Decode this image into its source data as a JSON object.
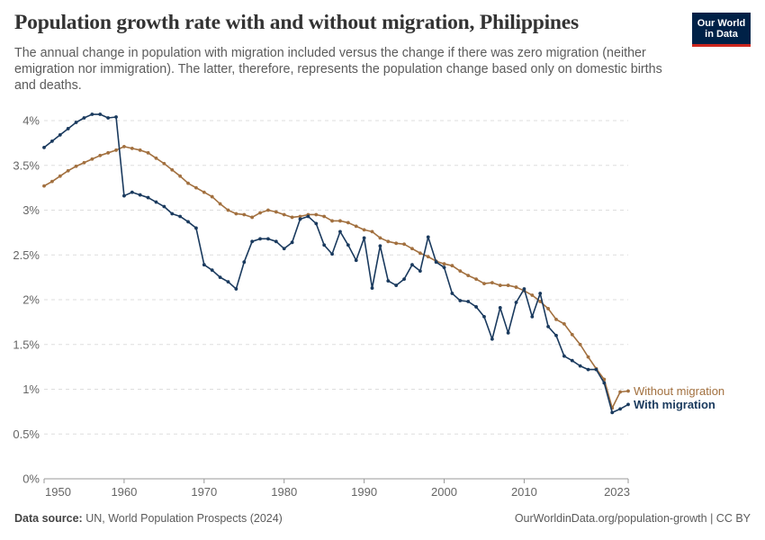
{
  "header": {
    "title": "Population growth rate with and without migration, Philippines",
    "subtitle": "The annual change in population with migration included versus the change if there was zero migration (neither emigration nor immigration). The latter, therefore, represents the population change based only on domestic births and deaths."
  },
  "logo": {
    "line1": "Our World",
    "line2": "in Data",
    "bg_color": "#002147",
    "accent_color": "#ce261e"
  },
  "footer": {
    "source_label": "Data source:",
    "source_text": "UN, World Population Prospects (2024)",
    "url_license": "OurWorldinData.org/population-growth | CC BY"
  },
  "chart_data": {
    "type": "line",
    "xlim": [
      1950,
      2023
    ],
    "ylim": [
      0,
      4
    ],
    "x_ticks": [
      "1950",
      "1960",
      "1970",
      "1980",
      "1990",
      "2000",
      "2010",
      "2023"
    ],
    "y_ticks": [
      "0%",
      "0.5%",
      "1%",
      "1.5%",
      "2%",
      "2.5%",
      "3%",
      "3.5%",
      "4%"
    ],
    "grid": "horizontal dashed",
    "x": [
      1950,
      1951,
      1952,
      1953,
      1954,
      1955,
      1956,
      1957,
      1958,
      1959,
      1960,
      1961,
      1962,
      1963,
      1964,
      1965,
      1966,
      1967,
      1968,
      1969,
      1970,
      1971,
      1972,
      1973,
      1974,
      1975,
      1976,
      1977,
      1978,
      1979,
      1980,
      1981,
      1982,
      1983,
      1984,
      1985,
      1986,
      1987,
      1988,
      1989,
      1990,
      1991,
      1992,
      1993,
      1994,
      1995,
      1996,
      1997,
      1998,
      1999,
      2000,
      2001,
      2002,
      2003,
      2004,
      2005,
      2006,
      2007,
      2008,
      2009,
      2010,
      2011,
      2012,
      2013,
      2014,
      2015,
      2016,
      2017,
      2018,
      2019,
      2020,
      2021,
      2022,
      2023
    ],
    "series": [
      {
        "name": "Without migration",
        "color": "#a2703f",
        "values": [
          3.27,
          3.32,
          3.38,
          3.44,
          3.49,
          3.53,
          3.57,
          3.61,
          3.64,
          3.67,
          3.71,
          3.69,
          3.67,
          3.64,
          3.58,
          3.52,
          3.45,
          3.38,
          3.3,
          3.25,
          3.2,
          3.15,
          3.07,
          3.0,
          2.96,
          2.95,
          2.92,
          2.97,
          3.0,
          2.98,
          2.95,
          2.92,
          2.93,
          2.95,
          2.95,
          2.93,
          2.88,
          2.88,
          2.86,
          2.82,
          2.78,
          2.76,
          2.69,
          2.65,
          2.63,
          2.62,
          2.57,
          2.52,
          2.48,
          2.43,
          2.4,
          2.38,
          2.32,
          2.27,
          2.23,
          2.18,
          2.19,
          2.16,
          2.16,
          2.14,
          2.1,
          2.05,
          1.98,
          1.9,
          1.78,
          1.73,
          1.61,
          1.5,
          1.36,
          1.23,
          1.11,
          0.79,
          0.97,
          0.98
        ]
      },
      {
        "name": "With migration",
        "color": "#1a3a5e",
        "values": [
          3.7,
          3.77,
          3.84,
          3.91,
          3.98,
          4.03,
          4.07,
          4.07,
          4.03,
          4.04,
          3.16,
          3.2,
          3.17,
          3.14,
          3.09,
          3.04,
          2.96,
          2.93,
          2.87,
          2.8,
          2.39,
          2.33,
          2.25,
          2.2,
          2.12,
          2.42,
          2.65,
          2.68,
          2.68,
          2.65,
          2.57,
          2.64,
          2.9,
          2.93,
          2.85,
          2.61,
          2.51,
          2.76,
          2.61,
          2.44,
          2.69,
          2.13,
          2.6,
          2.21,
          2.16,
          2.23,
          2.39,
          2.32,
          2.7,
          2.42,
          2.36,
          2.07,
          1.99,
          1.98,
          1.92,
          1.81,
          1.56,
          1.91,
          1.63,
          1.97,
          2.12,
          1.81,
          2.07,
          1.7,
          1.6,
          1.37,
          1.32,
          1.26,
          1.22,
          1.22,
          1.07,
          0.74,
          0.78,
          0.83
        ]
      }
    ]
  }
}
